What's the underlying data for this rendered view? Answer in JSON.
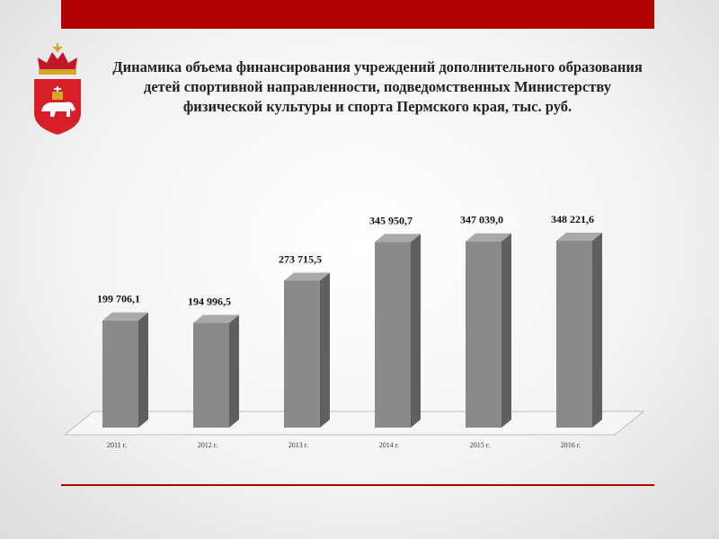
{
  "title": "Динамика объема финансирования учреждений дополнительного образования детей спортивной направленности, подведомственных Министерству физической культуры и спорта Пермского края, тыс. руб.",
  "chart_data": {
    "type": "bar",
    "categories": [
      "2011 г.",
      "2012 г.",
      "2013 г.",
      "2014 г.",
      "2015 г.",
      "2016 г."
    ],
    "values": [
      199706.1,
      194996.5,
      273715.5,
      345950.7,
      347039.0,
      348221.6
    ],
    "value_labels": [
      "199 706,1",
      "194 996,5",
      "273 715,5",
      "345 950,7",
      "347 039,0",
      "348 221,6"
    ],
    "ylim": [
      0,
      360000
    ],
    "grid": false,
    "legend": "none",
    "style": "3d-column",
    "bar_color": "#8a8a8a"
  },
  "colors": {
    "accent": "#b00000",
    "bar_front": "#8a8a8a",
    "bar_side": "#5f5f5f",
    "bar_top": "#a9a9a9"
  },
  "emblem": {
    "name": "perm-krai-coat-of-arms"
  }
}
